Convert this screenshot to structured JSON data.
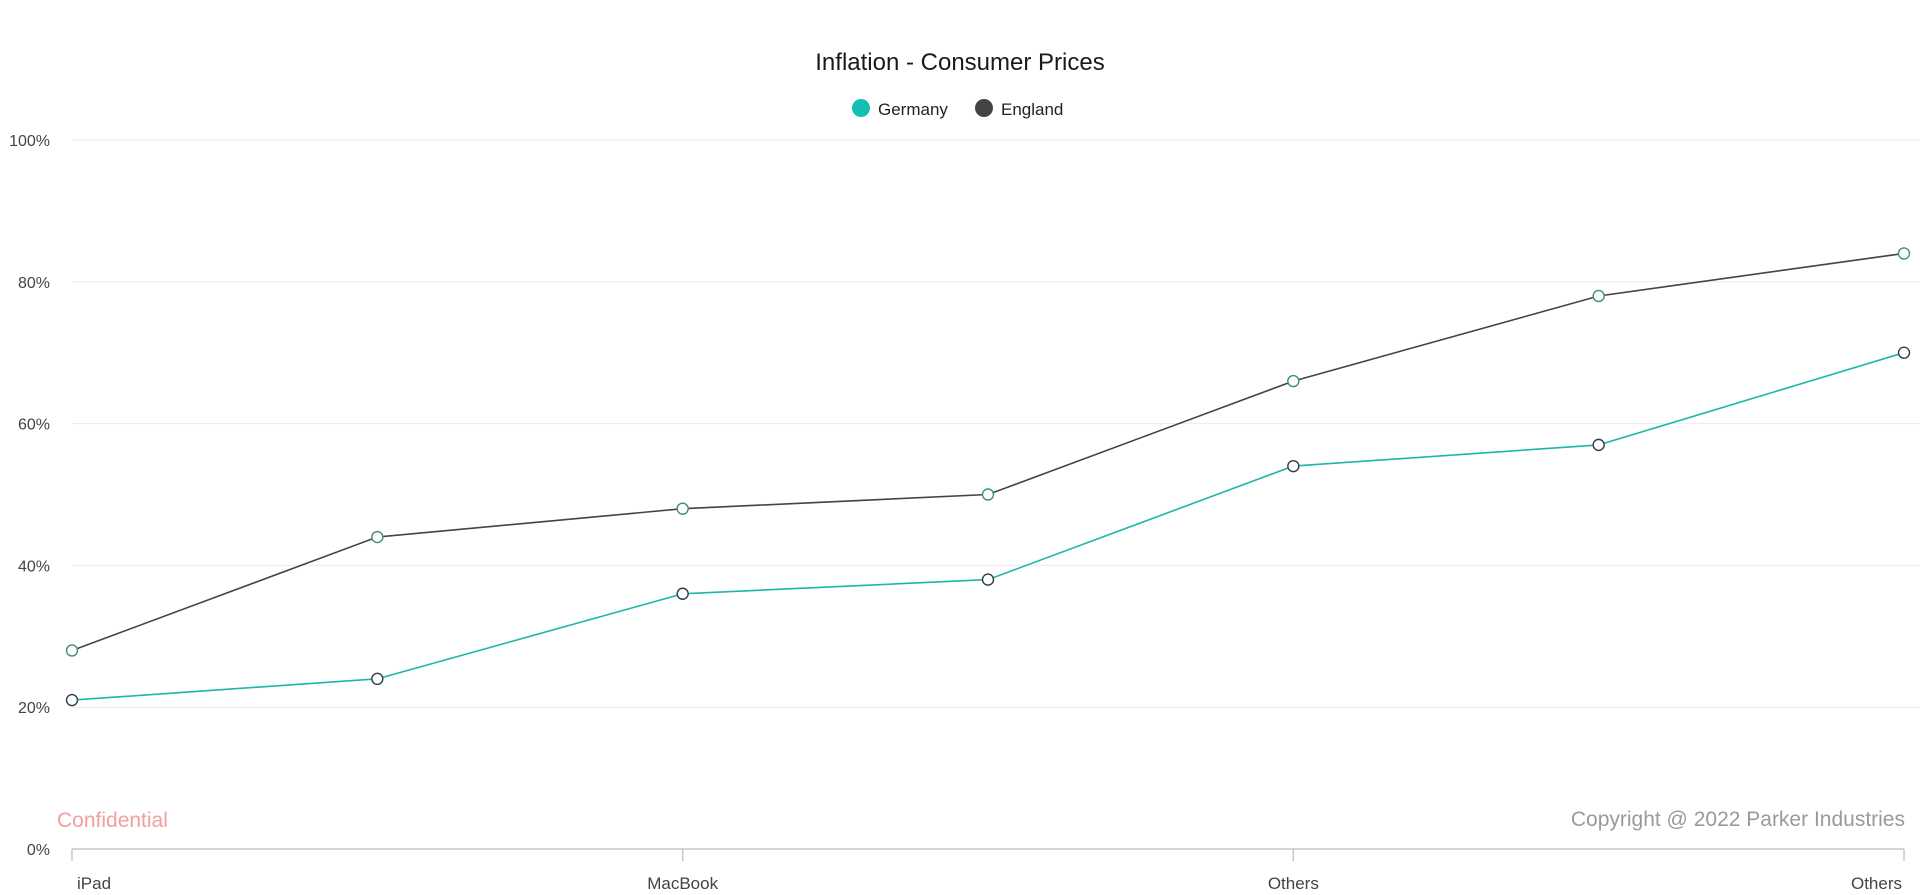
{
  "chart_data": {
    "type": "line",
    "title": "Inflation - Consumer Prices",
    "categories": [
      "iPad",
      "",
      "MacBook",
      "",
      "Others",
      "",
      "Others"
    ],
    "series": [
      {
        "name": "Germany",
        "color": "#1fb6aa",
        "marker_stroke": "#2f3e4a",
        "values": [
          21,
          24,
          36,
          38,
          54,
          57,
          70
        ]
      },
      {
        "name": "England",
        "color": "#444444",
        "marker_stroke": "#3f8e7d",
        "values": [
          28,
          44,
          48,
          50,
          66,
          78,
          84
        ]
      }
    ],
    "y_ticks": [
      "0%",
      "20%",
      "40%",
      "60%",
      "80%",
      "100%"
    ],
    "ylim": [
      0,
      100
    ],
    "grid": true,
    "legend_position": "top-center",
    "legend_swatch_colors": [
      "#12bfb0",
      "#444444"
    ]
  },
  "watermark": {
    "left": "Confidential",
    "right": "Copyright @ 2022 Parker Industries"
  }
}
